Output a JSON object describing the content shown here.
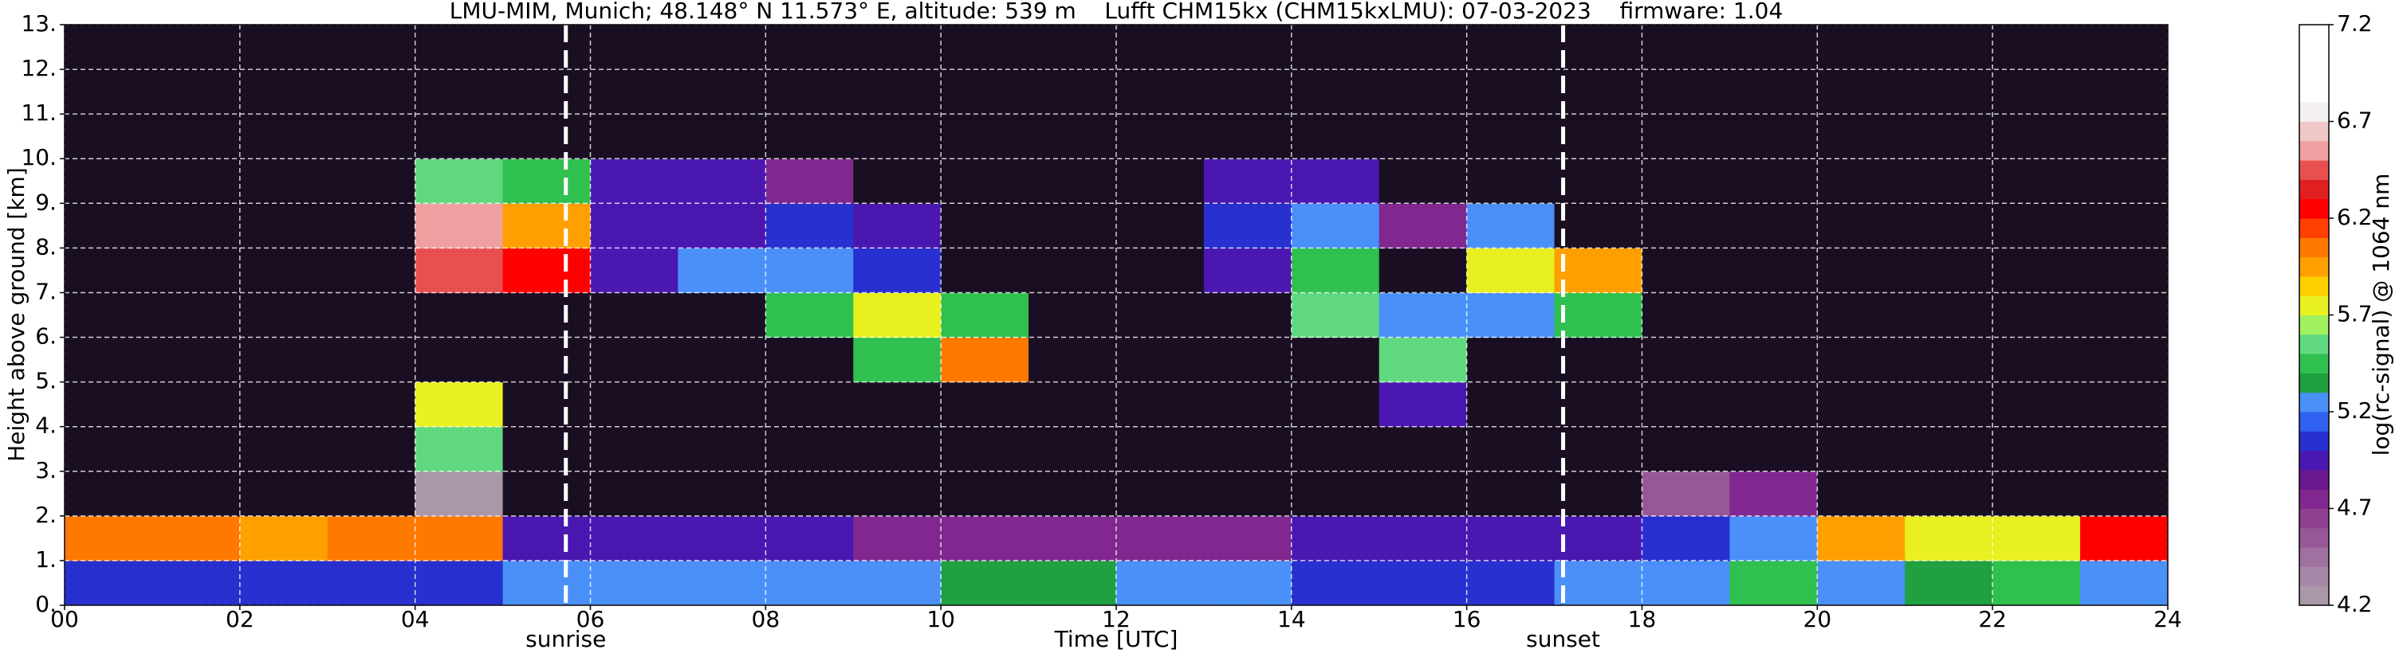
{
  "chart_data": {
    "type": "heatmap",
    "title": "LMU-MIM, Munich; 48.148° N 11.573° E, altitude: 539 m    Lufft CHM15kx (CHM15kxLMU): 07-03-2023    firmware: 1.04",
    "x_label": "Time [UTC]",
    "y_label": "Height above ground [km]",
    "colorbar_label": "log(rc-signal) @ 1064 nm",
    "x_edges": [
      0,
      1,
      2,
      3,
      4,
      5,
      6,
      7,
      8,
      9,
      10,
      11,
      12,
      13,
      14,
      15,
      16,
      17,
      18,
      19,
      20,
      21,
      22,
      23,
      24
    ],
    "y_edges": [
      0,
      1,
      2,
      3,
      4,
      5,
      6,
      7,
      8,
      9,
      10,
      11,
      12,
      13
    ],
    "z": [
      [
        5.1,
        5.1,
        5.1,
        5.1,
        5.1,
        5.2,
        5.3,
        5.3,
        5.3,
        5.3,
        5.35,
        5.35,
        5.3,
        5.2,
        5.1,
        5.1,
        5.1,
        5.2,
        5.3,
        5.4,
        5.3,
        5.35,
        5.4,
        5.3
      ],
      [
        6.1,
        6.0,
        5.9,
        6.0,
        6.1,
        5.0,
        4.9,
        4.9,
        4.9,
        4.8,
        4.8,
        4.8,
        4.8,
        4.8,
        4.9,
        4.9,
        4.9,
        5.0,
        5.1,
        5.2,
        5.9,
        5.8,
        5.8,
        6.2
      ],
      [
        4.1,
        4.1,
        4.1,
        4.1,
        4.3,
        4.1,
        4.1,
        4.1,
        4.1,
        4.1,
        4.1,
        4.1,
        4.1,
        4.1,
        4.1,
        4.1,
        4.1,
        4.1,
        4.6,
        4.7,
        4.1,
        4.1,
        4.1,
        4.1
      ],
      [
        4.1,
        4.1,
        4.1,
        4.1,
        5.6,
        4.1,
        4.1,
        4.1,
        4.1,
        4.1,
        4.1,
        4.1,
        4.1,
        4.1,
        4.1,
        4.1,
        4.1,
        4.1,
        4.1,
        4.1,
        4.1,
        4.1,
        4.1,
        4.1
      ],
      [
        4.1,
        4.1,
        4.1,
        4.1,
        5.7,
        4.1,
        4.1,
        4.1,
        4.1,
        4.1,
        4.1,
        4.1,
        4.1,
        4.1,
        4.1,
        5.0,
        4.1,
        4.1,
        4.1,
        4.1,
        4.1,
        4.1,
        4.1,
        4.1
      ],
      [
        4.1,
        4.1,
        4.1,
        4.1,
        4.1,
        4.1,
        4.1,
        4.1,
        4.1,
        5.5,
        6.0,
        4.1,
        4.1,
        4.1,
        4.1,
        5.6,
        4.1,
        4.1,
        4.1,
        4.1,
        4.1,
        4.1,
        4.1,
        4.1
      ],
      [
        4.1,
        4.1,
        4.1,
        4.1,
        4.1,
        4.1,
        4.1,
        4.1,
        5.4,
        5.8,
        5.5,
        4.1,
        4.1,
        4.1,
        5.6,
        5.3,
        5.3,
        5.5,
        4.1,
        4.1,
        4.1,
        4.1,
        4.1,
        4.1
      ],
      [
        4.1,
        4.1,
        4.1,
        4.1,
        6.4,
        6.3,
        5.0,
        5.2,
        5.3,
        5.1,
        4.1,
        4.1,
        4.1,
        5.0,
        5.4,
        4.1,
        5.8,
        5.9,
        4.1,
        4.1,
        4.1,
        4.1,
        4.1,
        4.1
      ],
      [
        4.1,
        4.1,
        4.1,
        4.1,
        6.5,
        5.9,
        4.9,
        5.0,
        5.1,
        4.9,
        4.1,
        4.1,
        4.1,
        5.1,
        5.3,
        4.8,
        5.2,
        4.1,
        4.1,
        4.1,
        4.1,
        4.1,
        4.1,
        4.1
      ],
      [
        4.1,
        4.1,
        4.1,
        4.1,
        5.6,
        5.4,
        4.9,
        4.9,
        4.8,
        4.1,
        4.1,
        4.1,
        4.1,
        5.0,
        4.9,
        4.1,
        4.1,
        4.1,
        4.1,
        4.1,
        4.1,
        4.1,
        4.1,
        4.1
      ],
      [
        4.1,
        4.1,
        4.1,
        4.1,
        4.1,
        4.1,
        4.1,
        4.1,
        4.1,
        4.1,
        4.1,
        4.1,
        4.1,
        4.1,
        4.1,
        4.1,
        4.1,
        4.1,
        4.1,
        4.1,
        4.1,
        4.1,
        4.1,
        4.1
      ],
      [
        4.1,
        4.1,
        4.1,
        4.1,
        4.1,
        4.1,
        4.1,
        4.1,
        4.1,
        4.1,
        4.1,
        4.1,
        4.1,
        4.1,
        4.1,
        4.1,
        4.1,
        4.1,
        4.1,
        4.1,
        4.1,
        4.1,
        4.1,
        4.1
      ],
      [
        4.1,
        4.1,
        4.1,
        4.1,
        4.1,
        4.1,
        4.1,
        4.1,
        4.1,
        4.1,
        4.1,
        4.1,
        4.1,
        4.1,
        4.1,
        4.1,
        4.1,
        4.1,
        4.1,
        4.1,
        4.1,
        4.1,
        4.1,
        4.1
      ]
    ],
    "xlim": [
      0,
      24
    ],
    "ylim": [
      0,
      13
    ],
    "zlim": [
      4.2,
      7.2
    ],
    "xticks": [
      {
        "value": 0,
        "label": "00"
      },
      {
        "value": 2,
        "label": "02"
      },
      {
        "value": 4,
        "label": "04"
      },
      {
        "value": 6,
        "label": "06"
      },
      {
        "value": 8,
        "label": "08"
      },
      {
        "value": 10,
        "label": "10"
      },
      {
        "value": 12,
        "label": "12"
      },
      {
        "value": 14,
        "label": "14"
      },
      {
        "value": 16,
        "label": "16"
      },
      {
        "value": 18,
        "label": "18"
      },
      {
        "value": 20,
        "label": "20"
      },
      {
        "value": 22,
        "label": "22"
      },
      {
        "value": 24,
        "label": "24"
      }
    ],
    "yticks": [
      {
        "value": 0,
        "label": "0."
      },
      {
        "value": 1,
        "label": "1."
      },
      {
        "value": 2,
        "label": "2."
      },
      {
        "value": 3,
        "label": "3."
      },
      {
        "value": 4,
        "label": "4."
      },
      {
        "value": 5,
        "label": "5."
      },
      {
        "value": 6,
        "label": "6."
      },
      {
        "value": 7,
        "label": "7."
      },
      {
        "value": 8,
        "label": "8."
      },
      {
        "value": 9,
        "label": "9."
      },
      {
        "value": 10,
        "label": "10."
      },
      {
        "value": 11,
        "label": "11."
      },
      {
        "value": 12,
        "label": "12."
      },
      {
        "value": 13,
        "label": "13."
      }
    ],
    "zticks": [
      4.2,
      4.7,
      5.2,
      5.7,
      6.2,
      6.7,
      7.2
    ],
    "colorscale": [
      "#a898a8",
      "#a888a8",
      "#a070a0",
      "#985898",
      "#904090",
      "#802890",
      "#6a1890",
      "#4a18b0",
      "#2830d0",
      "#3060f0",
      "#4a90f8",
      "#20a040",
      "#30c050",
      "#60d880",
      "#a0f060",
      "#e8f020",
      "#ffd000",
      "#ffa000",
      "#ff7800",
      "#ff4000",
      "#ff0000",
      "#e02020",
      "#e85050",
      "#f0a0a0",
      "#f0c8c8",
      "#f4f0f0",
      "#ffffff",
      "#ffffff",
      "#ffffff",
      "#ffffff"
    ],
    "under_color": "#1a0f22",
    "grid": true,
    "annotations": [
      {
        "text": "sunrise",
        "x": 5.72
      },
      {
        "text": "sunset",
        "x": 17.1
      }
    ]
  }
}
